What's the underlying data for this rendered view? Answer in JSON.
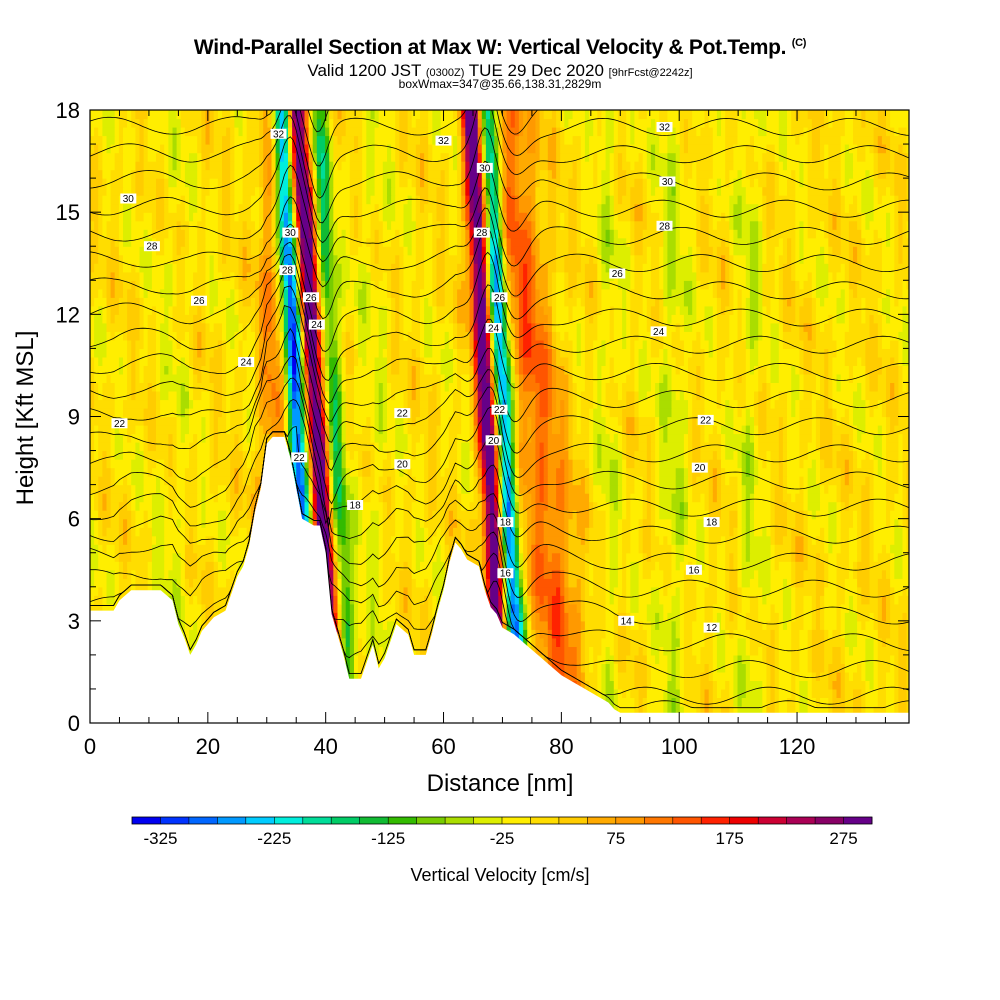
{
  "title": {
    "main": "Wind-Parallel Section at Max W: Vertical Velocity & Pot.Temp.",
    "copyright": "(C)",
    "valid_prefix": "Valid 1200 JST",
    "valid_utc": "(0300Z)",
    "valid_date": "TUE 29 Dec 2020",
    "forecast": "[9hrFcst@2242z]",
    "box": "boxWmax=347@35.66,138.31,2829m"
  },
  "chart_data": {
    "type": "heatmap",
    "xlabel": "Distance [nm]",
    "ylabel": "Height [Kft MSL]",
    "xlim": [
      0,
      139
    ],
    "ylim": [
      0,
      18
    ],
    "x_ticks": [
      0,
      20,
      40,
      60,
      80,
      100,
      120
    ],
    "y_ticks": [
      0,
      3,
      6,
      9,
      12,
      15,
      18
    ],
    "colorbar": {
      "label": "Vertical Velocity [cm/s]",
      "tick_labels": [
        "-325",
        "-225",
        "-125",
        "-25",
        "75",
        "175",
        "275"
      ],
      "min": -350,
      "step": 25,
      "colors": [
        "#0000f0",
        "#0033ff",
        "#0066ff",
        "#0099ff",
        "#00ccff",
        "#00eedd",
        "#00dd99",
        "#00cc66",
        "#11bb33",
        "#33bb00",
        "#77cc00",
        "#aadd00",
        "#ddee00",
        "#ffee00",
        "#ffdd00",
        "#ffcc00",
        "#ffaa00",
        "#ff9900",
        "#ff7700",
        "#ff5500",
        "#ff2200",
        "#ee0000",
        "#cc0033",
        "#aa0055",
        "#880066",
        "#660088"
      ]
    },
    "updraft_bands": [
      {
        "x": 37.3,
        "slope": -0.35,
        "width": 1.8,
        "peak": 340,
        "y_top": 18
      },
      {
        "x": 74.0,
        "slope": -0.6,
        "width": 4.5,
        "peak": 120,
        "y_top": 18
      },
      {
        "x": 66.5,
        "slope": -0.3,
        "width": 1.6,
        "peak": 330,
        "y_top": 18
      },
      {
        "x": 31.0,
        "slope": 0.0,
        "width": 2.5,
        "peak": 90,
        "y_top": 18
      }
    ],
    "downdraft_bands": [
      {
        "x": 34.3,
        "slope": -0.3,
        "width": 1.7,
        "peak": -330
      },
      {
        "x": 69.3,
        "slope": -0.3,
        "width": 1.6,
        "peak": -300
      },
      {
        "x": 40.5,
        "slope": -0.3,
        "width": 1.6,
        "peak": -150
      }
    ],
    "terrain": [
      [
        0,
        3.3
      ],
      [
        4,
        3.3
      ],
      [
        5,
        3.6
      ],
      [
        7,
        3.9
      ],
      [
        12,
        3.9
      ],
      [
        14,
        3.6
      ],
      [
        15,
        2.9
      ],
      [
        16,
        2.5
      ],
      [
        17,
        2.0
      ],
      [
        18,
        2.3
      ],
      [
        19,
        2.7
      ],
      [
        20,
        2.9
      ],
      [
        21,
        3.1
      ],
      [
        23,
        3.3
      ],
      [
        25,
        4.3
      ],
      [
        26,
        4.6
      ],
      [
        27,
        5.2
      ],
      [
        28,
        6.2
      ],
      [
        29,
        6.9
      ],
      [
        30,
        8.2
      ],
      [
        31,
        8.4
      ],
      [
        33,
        8.4
      ],
      [
        34,
        7.8
      ],
      [
        35,
        6.9
      ],
      [
        36,
        6.0
      ],
      [
        38,
        5.8
      ],
      [
        39,
        5.8
      ],
      [
        40,
        5.0
      ],
      [
        41,
        3.2
      ],
      [
        42,
        2.6
      ],
      [
        43,
        2.0
      ],
      [
        44,
        1.3
      ],
      [
        46,
        1.3
      ],
      [
        47,
        1.8
      ],
      [
        48,
        2.3
      ],
      [
        49,
        1.6
      ],
      [
        50,
        1.9
      ],
      [
        51,
        2.4
      ],
      [
        52,
        2.9
      ],
      [
        54,
        2.6
      ],
      [
        55,
        2.0
      ],
      [
        57,
        2.0
      ],
      [
        58,
        2.6
      ],
      [
        59,
        3.3
      ],
      [
        60,
        3.9
      ],
      [
        61,
        4.7
      ],
      [
        62,
        5.3
      ],
      [
        63,
        5.1
      ],
      [
        64,
        4.8
      ],
      [
        65,
        4.7
      ],
      [
        66,
        4.6
      ],
      [
        67,
        3.9
      ],
      [
        68,
        3.4
      ],
      [
        69,
        3.2
      ],
      [
        70,
        2.8
      ],
      [
        72,
        2.6
      ],
      [
        74,
        2.3
      ],
      [
        76,
        2.0
      ],
      [
        78,
        1.7
      ],
      [
        80,
        1.4
      ],
      [
        82,
        1.2
      ],
      [
        84,
        1.0
      ],
      [
        86,
        0.8
      ],
      [
        88,
        0.6
      ],
      [
        89,
        0.4
      ],
      [
        90,
        0.3
      ],
      [
        139,
        0.3
      ]
    ],
    "theta_labels": [
      {
        "x": 6.5,
        "y": 15.4,
        "text": "30"
      },
      {
        "x": 10.5,
        "y": 14.0,
        "text": "28"
      },
      {
        "x": 18.5,
        "y": 12.4,
        "text": "26"
      },
      {
        "x": 26.5,
        "y": 10.6,
        "text": "24"
      },
      {
        "x": 5.0,
        "y": 8.8,
        "text": "22"
      },
      {
        "x": 32.0,
        "y": 17.3,
        "text": "32"
      },
      {
        "x": 34.0,
        "y": 14.4,
        "text": "30"
      },
      {
        "x": 33.5,
        "y": 13.3,
        "text": "28"
      },
      {
        "x": 37.5,
        "y": 12.5,
        "text": "26"
      },
      {
        "x": 38.5,
        "y": 11.7,
        "text": "24"
      },
      {
        "x": 35.5,
        "y": 7.8,
        "text": "22"
      },
      {
        "x": 60.0,
        "y": 17.1,
        "text": "32"
      },
      {
        "x": 53.0,
        "y": 9.1,
        "text": "22"
      },
      {
        "x": 53.0,
        "y": 7.6,
        "text": "20"
      },
      {
        "x": 45.0,
        "y": 6.4,
        "text": "18"
      },
      {
        "x": 67.0,
        "y": 16.3,
        "text": "30"
      },
      {
        "x": 66.5,
        "y": 14.4,
        "text": "28"
      },
      {
        "x": 69.5,
        "y": 12.5,
        "text": "26"
      },
      {
        "x": 68.5,
        "y": 11.6,
        "text": "24"
      },
      {
        "x": 69.5,
        "y": 9.2,
        "text": "22"
      },
      {
        "x": 68.5,
        "y": 8.3,
        "text": "20"
      },
      {
        "x": 70.5,
        "y": 5.9,
        "text": "18"
      },
      {
        "x": 70.5,
        "y": 4.4,
        "text": "16"
      },
      {
        "x": 97.5,
        "y": 17.5,
        "text": "32"
      },
      {
        "x": 98.0,
        "y": 15.9,
        "text": "30"
      },
      {
        "x": 97.5,
        "y": 14.6,
        "text": "28"
      },
      {
        "x": 89.5,
        "y": 13.2,
        "text": "26"
      },
      {
        "x": 96.5,
        "y": 11.5,
        "text": "24"
      },
      {
        "x": 104.5,
        "y": 8.9,
        "text": "22"
      },
      {
        "x": 103.5,
        "y": 7.5,
        "text": "20"
      },
      {
        "x": 105.5,
        "y": 5.9,
        "text": "18"
      },
      {
        "x": 102.5,
        "y": 4.5,
        "text": "16"
      },
      {
        "x": 91.0,
        "y": 3.0,
        "text": "14"
      },
      {
        "x": 105.5,
        "y": 2.8,
        "text": "12"
      }
    ]
  }
}
